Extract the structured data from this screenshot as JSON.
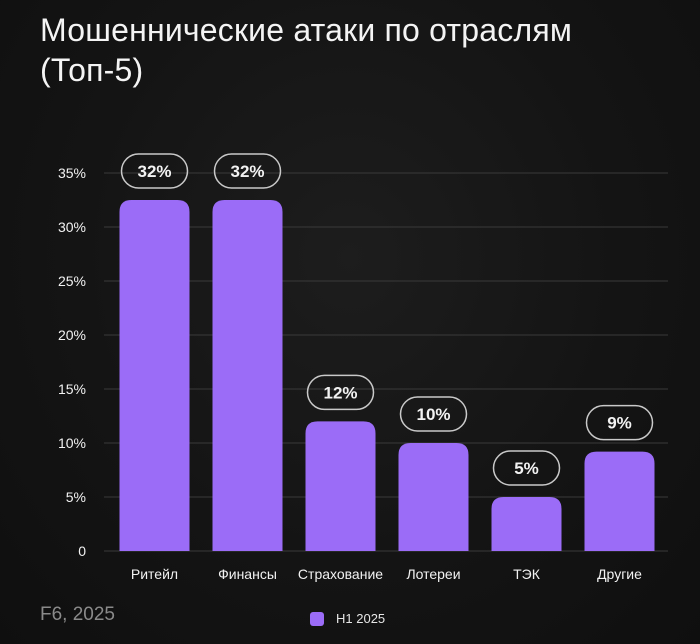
{
  "title_line1": "Мошеннические атаки по отраслям",
  "title_line2": "(Топ-5)",
  "source": "F6, 2025",
  "colors": {
    "bar": "#9b6cf7",
    "grid": "#3a3a3a",
    "label_border": "#c9c9c9",
    "text": "#f2f2f2"
  },
  "chart_data": {
    "type": "bar",
    "categories": [
      "Ритейл",
      "Финансы",
      "Страхование",
      "Лотереи",
      "ТЭК",
      "Другие"
    ],
    "series": [
      {
        "name": "H1 2025",
        "values": [
          32.5,
          32.5,
          12,
          10,
          5,
          9.2
        ]
      }
    ],
    "data_labels": [
      "32%",
      "32%",
      "12%",
      "10%",
      "5%",
      "9%"
    ],
    "y_ticks": [
      "0",
      "5%",
      "10%",
      "15%",
      "20%",
      "25%",
      "30%",
      "35%"
    ],
    "ylim": [
      0,
      35
    ],
    "grid": true,
    "legend_position": "bottom-center"
  }
}
